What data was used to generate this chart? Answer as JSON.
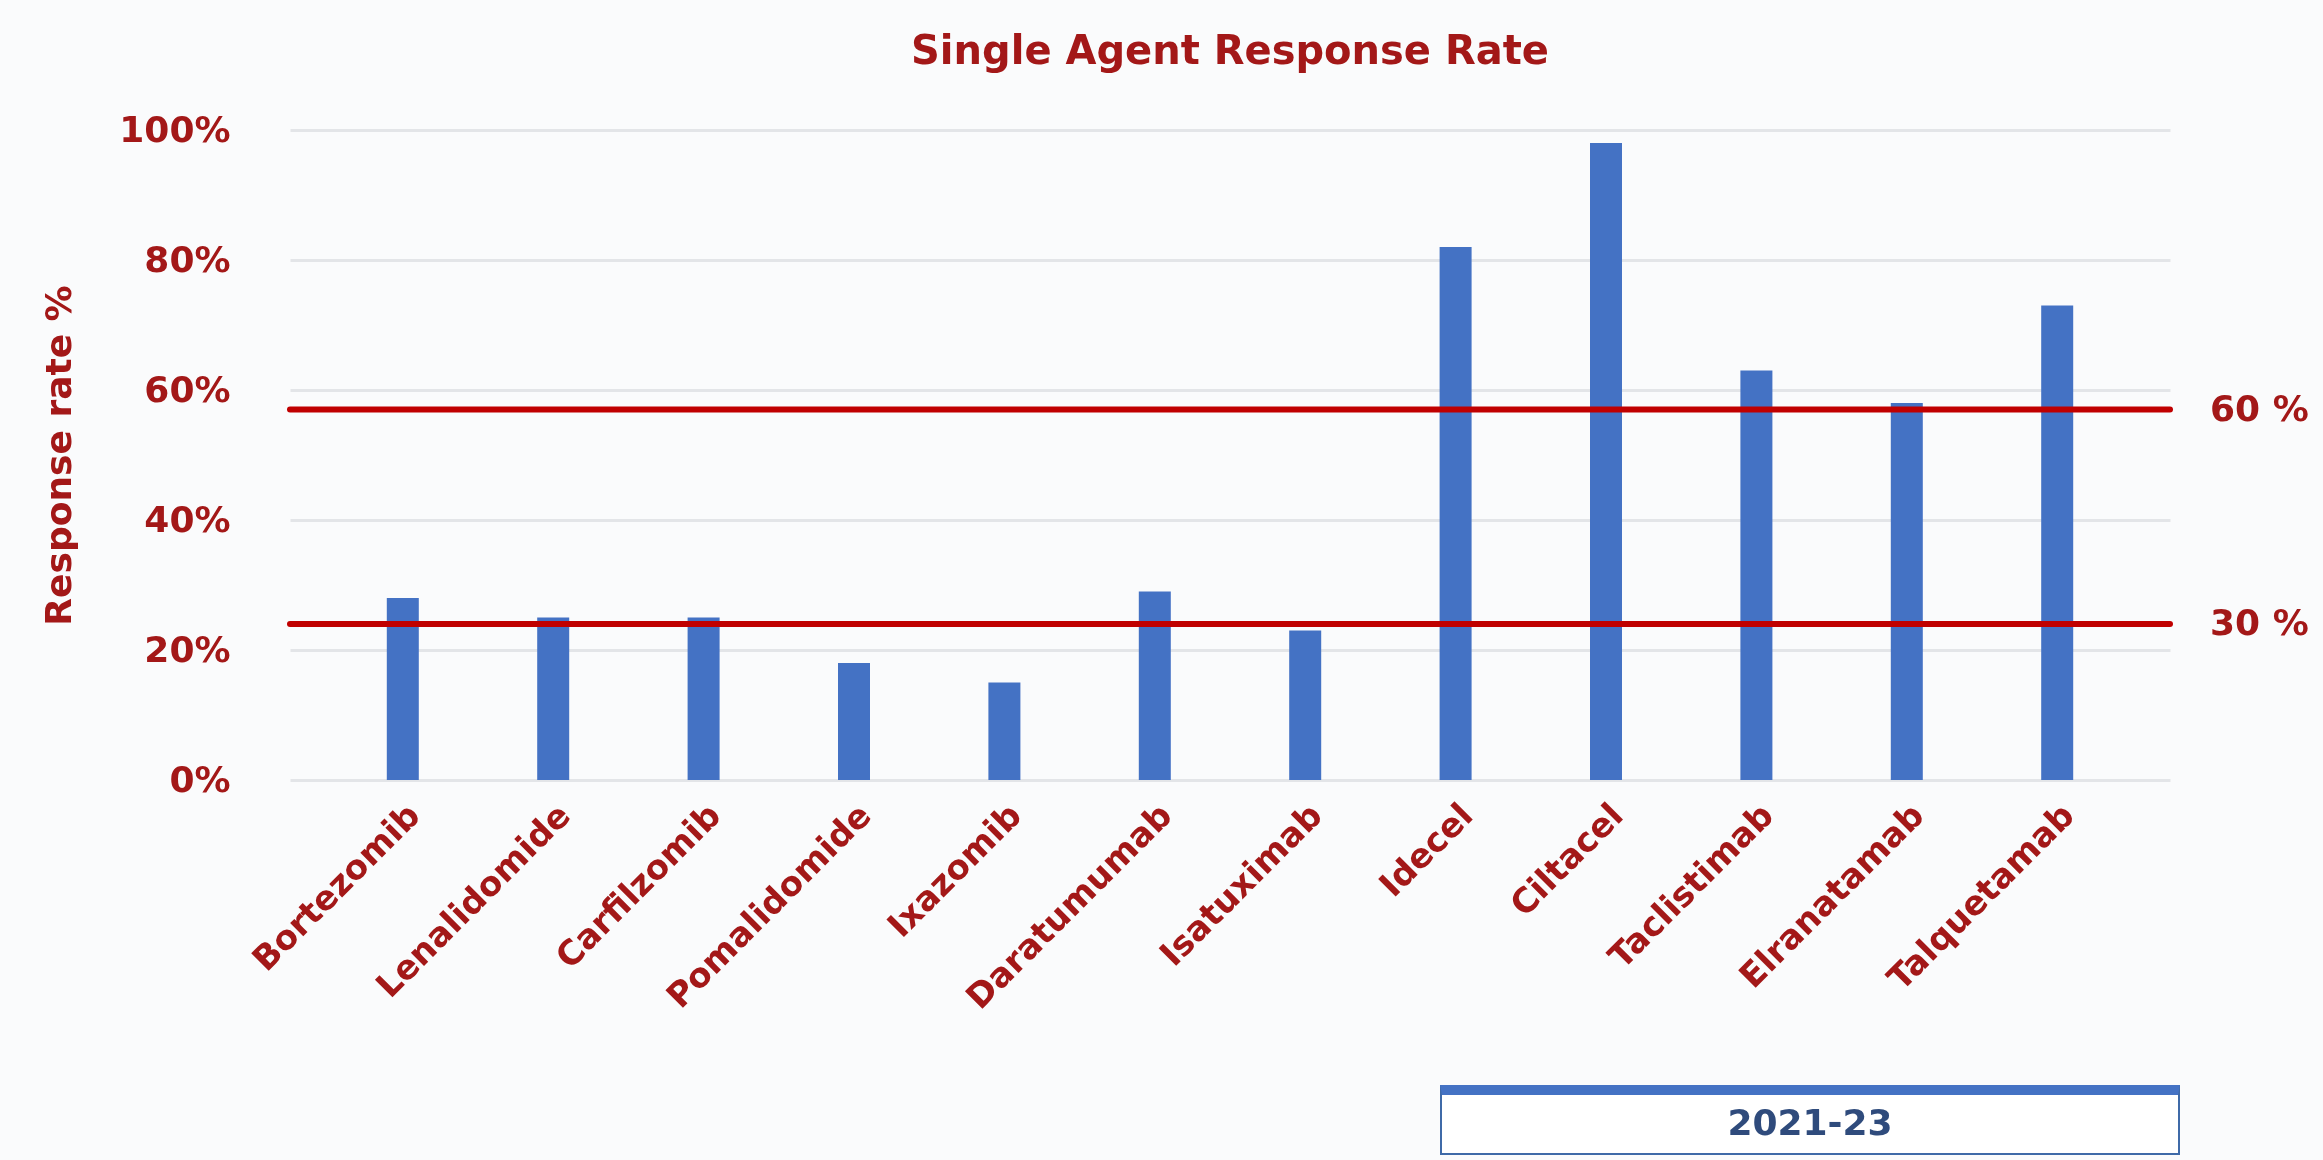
{
  "chart_data": {
    "type": "bar",
    "title": "Single Agent Response Rate",
    "ylabel": "Response rate %",
    "categories": [
      "Bortezomib",
      "Lenalidomide",
      "Carfilzomib",
      "Pomalidomide",
      "Ixazomib",
      "Daratumumab",
      "Isatuximab",
      "Idecel",
      "Ciltacel",
      "Taclistimab",
      "Elranatamab",
      "Talquetamab"
    ],
    "values": [
      28,
      25,
      25,
      18,
      15,
      29,
      23,
      82,
      98,
      63,
      58,
      73
    ],
    "color": "#4472c4",
    "ylim": [
      0,
      100
    ],
    "yticks": [
      {
        "value": 0,
        "label": "0%"
      },
      {
        "value": 20,
        "label": "20%"
      },
      {
        "value": 40,
        "label": "40%"
      },
      {
        "value": 60,
        "label": "60%"
      },
      {
        "value": 80,
        "label": "80%"
      },
      {
        "value": 100,
        "label": "100%"
      }
    ],
    "grid": "y",
    "ref_lines": [
      {
        "axis": "y",
        "value": 57,
        "color": "#c00000"
      },
      {
        "axis": "y",
        "value": 24,
        "color": "#c00000"
      }
    ],
    "annotations": [
      "60 %",
      "30 %",
      "2021-23"
    ]
  }
}
